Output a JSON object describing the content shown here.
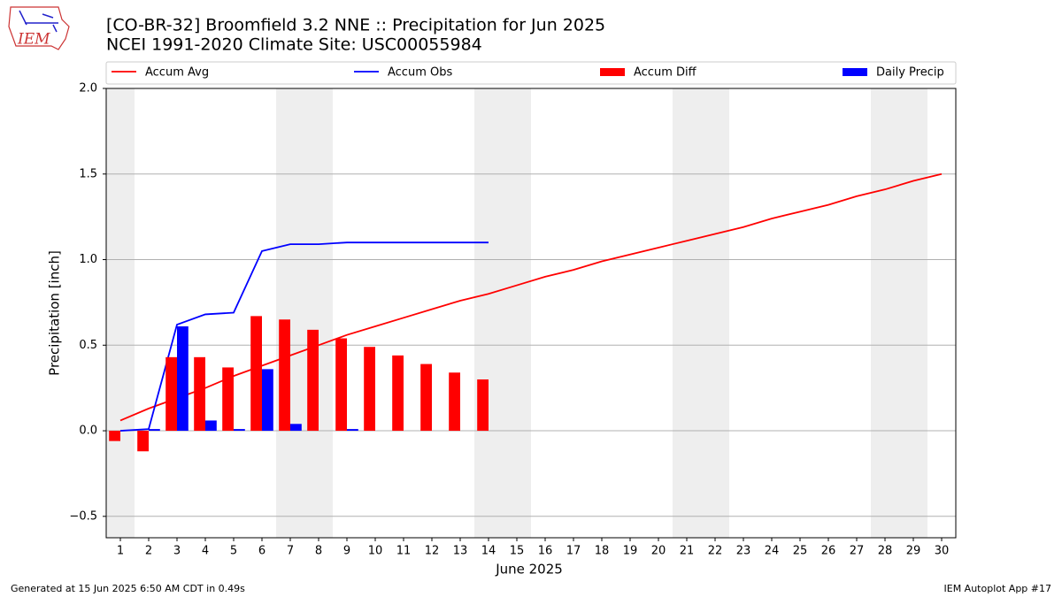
{
  "logo_text": "IEM",
  "chart_data": {
    "type": "combo",
    "title": "[CO-BR-32] Broomfield 3.2 NNE :: Precipitation for Jun 2025",
    "subtitle": "NCEI 1991-2020 Climate Site: USC00055984",
    "xlabel": "June 2025",
    "ylabel": "Precipitation [inch]",
    "x": [
      1,
      2,
      3,
      4,
      5,
      6,
      7,
      8,
      9,
      10,
      11,
      12,
      13,
      14,
      15,
      16,
      17,
      18,
      19,
      20,
      21,
      22,
      23,
      24,
      25,
      26,
      27,
      28,
      29,
      30
    ],
    "xlim": [
      0.5,
      30.5
    ],
    "xticks": [
      1,
      2,
      3,
      4,
      5,
      6,
      7,
      8,
      9,
      10,
      11,
      12,
      13,
      14,
      15,
      16,
      17,
      18,
      19,
      20,
      21,
      22,
      23,
      24,
      25,
      26,
      27,
      28,
      29,
      30
    ],
    "ylim": [
      -0.625,
      2.0
    ],
    "yticks": [
      {
        "value": -0.5,
        "label": "−0.5"
      },
      {
        "value": 0,
        "label": "0.0"
      },
      0.5,
      {
        "value": 1,
        "label": "1.0"
      },
      1.5,
      {
        "value": 2,
        "label": "2.0"
      }
    ],
    "grid": true,
    "shaded_spans": [
      [
        0.5,
        1.5
      ],
      [
        6.5,
        8.5
      ],
      [
        13.5,
        15.5
      ],
      [
        20.5,
        22.5
      ],
      [
        27.5,
        29.5
      ]
    ],
    "shade_color": "#eeeeee",
    "legend": "top",
    "series": [
      {
        "name": "Accum Avg",
        "type": "line",
        "color": "#ff0000",
        "values": [
          0.06,
          0.13,
          0.19,
          0.25,
          0.32,
          0.38,
          0.44,
          0.5,
          0.56,
          0.61,
          0.66,
          0.71,
          0.76,
          0.8,
          0.85,
          0.9,
          0.94,
          0.99,
          1.03,
          1.07,
          1.11,
          1.15,
          1.19,
          1.24,
          1.28,
          1.32,
          1.37,
          1.41,
          1.46,
          1.5
        ]
      },
      {
        "name": "Accum Obs",
        "type": "line",
        "color": "#0000ff",
        "values": [
          0.0,
          0.01,
          0.62,
          0.68,
          0.69,
          1.05,
          1.09,
          1.09,
          1.1,
          1.1,
          1.1,
          1.1,
          1.1,
          1.1,
          null,
          null,
          null,
          null,
          null,
          null,
          null,
          null,
          null,
          null,
          null,
          null,
          null,
          null,
          null,
          null
        ]
      },
      {
        "name": "Accum Diff",
        "type": "bar",
        "color": "#ff0000",
        "values": [
          -0.06,
          -0.12,
          0.43,
          0.43,
          0.37,
          0.67,
          0.65,
          0.59,
          0.54,
          0.49,
          0.44,
          0.39,
          0.34,
          0.3,
          null,
          null,
          null,
          null,
          null,
          null,
          null,
          null,
          null,
          null,
          null,
          null,
          null,
          null,
          null,
          null
        ]
      },
      {
        "name": "Daily Precip",
        "type": "bar",
        "color": "#0000ff",
        "values": [
          0.0,
          0.01,
          0.61,
          0.06,
          0.01,
          0.36,
          0.04,
          0.0,
          0.01,
          0.0,
          0.0,
          0.0,
          0.0,
          0.0,
          null,
          null,
          null,
          null,
          null,
          null,
          null,
          null,
          null,
          null,
          null,
          null,
          null,
          null,
          null,
          null
        ]
      }
    ],
    "footer_left": "Generated at 15 Jun 2025 6:50 AM CDT in 0.49s",
    "footer_right": "IEM Autoplot App #17"
  }
}
